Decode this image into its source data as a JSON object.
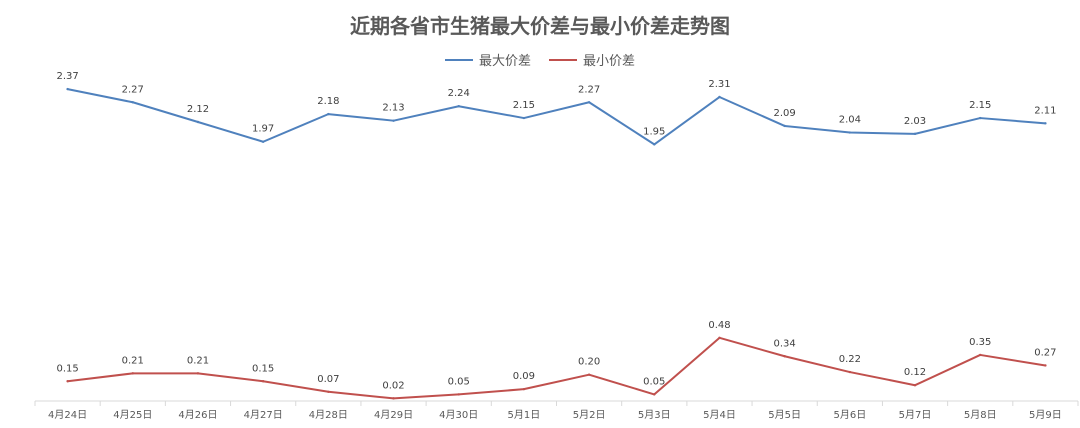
{
  "chart_data": {
    "type": "line",
    "title": "近期各省市生猪最大价差与最小价差走势图",
    "categories": [
      "4月24日",
      "4月25日",
      "4月26日",
      "4月27日",
      "4月28日",
      "4月29日",
      "4月30日",
      "5月1日",
      "5月2日",
      "5月3日",
      "5月4日",
      "5月5日",
      "5月6日",
      "5月7日",
      "5月8日",
      "5月9日"
    ],
    "series": [
      {
        "name": "最大价差",
        "color": "#4f81bd",
        "values": [
          2.37,
          2.27,
          2.12,
          1.97,
          2.18,
          2.13,
          2.24,
          2.15,
          2.27,
          1.95,
          2.31,
          2.09,
          2.04,
          2.03,
          2.15,
          2.11
        ],
        "labels": [
          "2.37",
          "2.27",
          "2.12",
          "1.97",
          "2.18",
          "2.13",
          "2.24",
          "2.15",
          "2.27",
          "1.95",
          "2.31",
          "2.09",
          "2.04",
          "2.03",
          "2.15",
          "2.11"
        ]
      },
      {
        "name": "最小价差",
        "color": "#c0504d",
        "values": [
          0.15,
          0.21,
          0.21,
          0.15,
          0.07,
          0.02,
          0.05,
          0.09,
          0.2,
          0.05,
          0.48,
          0.34,
          0.22,
          0.12,
          0.35,
          0.27
        ],
        "labels": [
          "0.15",
          "0.21",
          "0.21",
          "0.15",
          "0.07",
          "0.02",
          "0.05",
          "0.09",
          "0.20",
          "0.05",
          "0.48",
          "0.34",
          "0.22",
          "0.12",
          "0.35",
          "0.27"
        ]
      }
    ],
    "xlabel": "",
    "ylabel": "",
    "ylim": [
      0,
      2.5
    ],
    "grid": false,
    "legend_position": "top"
  }
}
